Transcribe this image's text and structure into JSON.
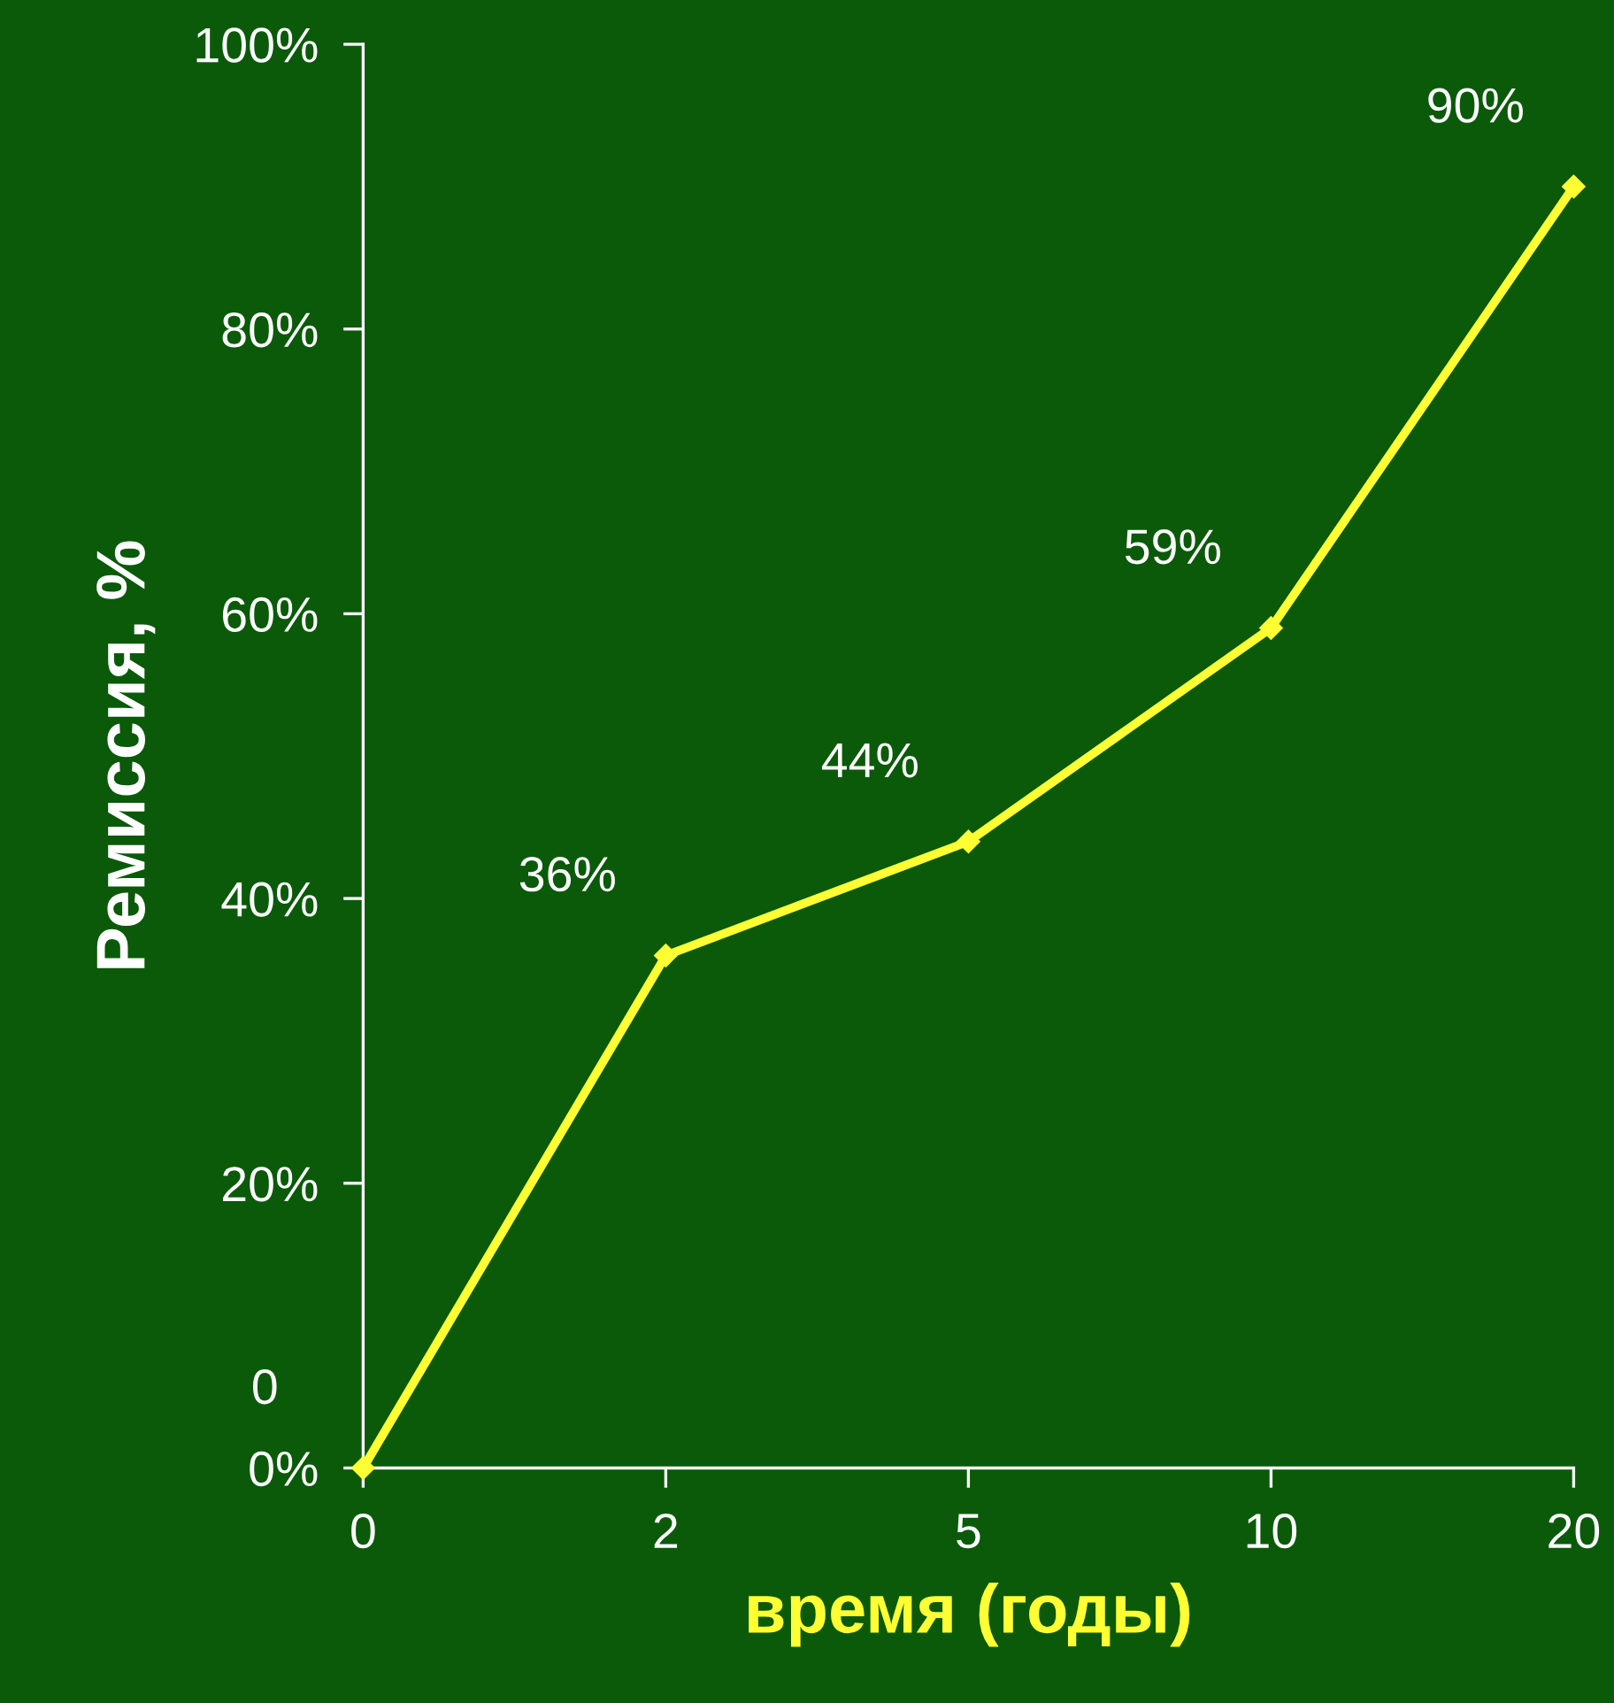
{
  "chart_data": {
    "type": "line",
    "xlabel": "время (годы)",
    "ylabel": "Ремиссия, %",
    "categories": [
      "0",
      "2",
      "5",
      "10",
      "20"
    ],
    "series": [
      {
        "color": "#ffff33",
        "values": [
          0,
          36,
          44,
          59,
          90
        ],
        "value_labels": [
          "0",
          "36%",
          "44%",
          "59%",
          "90%"
        ]
      }
    ],
    "ylim": [
      0,
      100
    ],
    "yticks": [
      {
        "value": 0,
        "label": "0%"
      },
      {
        "value": 20,
        "label": "20%"
      },
      {
        "value": 40,
        "label": "40%"
      },
      {
        "value": 60,
        "label": "60%"
      },
      {
        "value": 80,
        "label": "80%"
      },
      {
        "value": 100,
        "label": "100%"
      }
    ],
    "marker": "diamond",
    "line_style": "solid",
    "grid": false,
    "legend": false
  }
}
